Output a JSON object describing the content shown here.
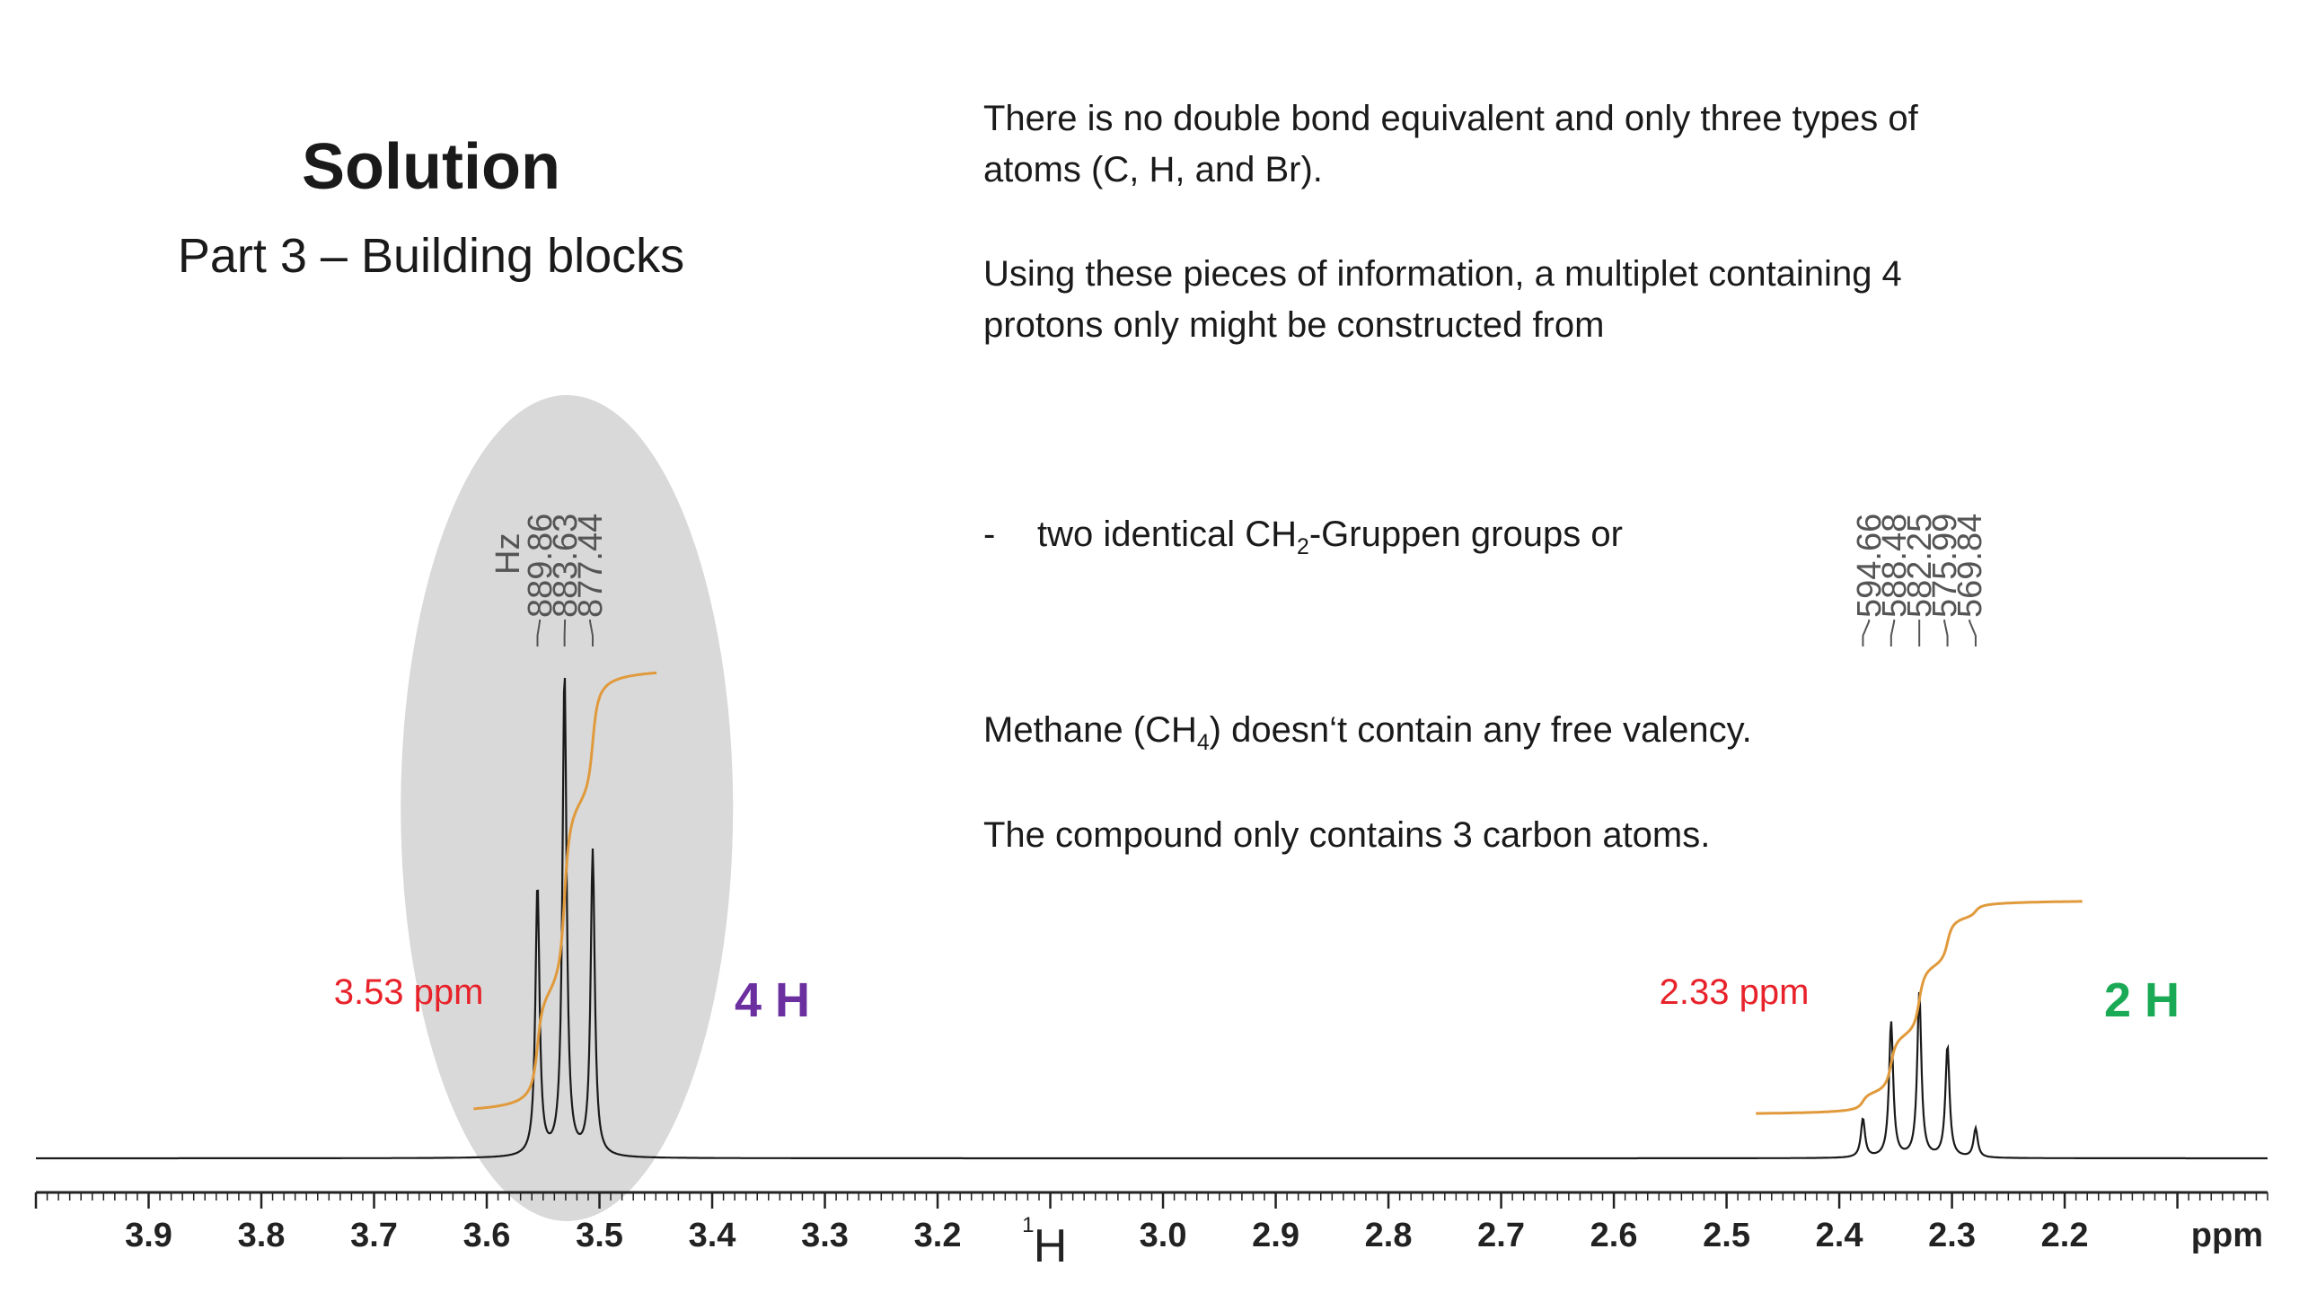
{
  "slide": {
    "title": "Solution",
    "subtitle": "Part 3 – Building blocks",
    "paragraph1": "There is no double bond equivalent and only three types of atoms (C, H, and Br).",
    "paragraph2": "Using these pieces of information, a multiplet containing 4 protons only might be constructed from",
    "bullet_dash": "-",
    "bullet_pre": "two identical CH",
    "bullet_sub": "2",
    "bullet_post": "-Gruppen groups or",
    "paragraph3_pre": "Methane (CH",
    "paragraph3_sub": "4",
    "paragraph3_post": ") doesn‘t contain any free valency.",
    "paragraph4": "The compound only contains 3 carbon atoms."
  },
  "colors": {
    "spectrum": "#1a1a1a",
    "integral": "#e09a3c",
    "highlight": "#d9d9d9",
    "shift_label": "#e8222a",
    "count_4h": "#6b2fa0",
    "count_2h": "#1aaa55",
    "peak_label": "#555555"
  },
  "chart_data": {
    "type": "line",
    "nucleus_superscript": "1",
    "nucleus_symbol": "H",
    "xlabel": "ppm",
    "xlim": [
      4.0,
      2.02
    ],
    "x_ticks": [
      3.9,
      3.8,
      3.7,
      3.6,
      3.5,
      3.4,
      3.3,
      3.2,
      3.0,
      2.9,
      2.8,
      2.7,
      2.6,
      2.5,
      2.4,
      2.3,
      2.2
    ],
    "multiplets": [
      {
        "shift_label": "3.53 ppm",
        "count_label": "4 H",
        "highlighted": true,
        "unit_label": "Hz",
        "peaks": [
          {
            "ppm": 3.555,
            "hz_label": "889.86",
            "rel_height": 0.56
          },
          {
            "ppm": 3.531,
            "hz_label": "883.63",
            "rel_height": 1.0
          },
          {
            "ppm": 3.506,
            "hz_label": "877.44",
            "rel_height": 0.63
          }
        ]
      },
      {
        "shift_label": "2.33 ppm",
        "count_label": "2 H",
        "highlighted": false,
        "unit_label": "",
        "peaks": [
          {
            "ppm": 2.379,
            "hz_label": "594.66",
            "rel_height": 0.08
          },
          {
            "ppm": 2.354,
            "hz_label": "588.48",
            "rel_height": 0.28
          },
          {
            "ppm": 2.329,
            "hz_label": "582.25",
            "rel_height": 0.34
          },
          {
            "ppm": 2.304,
            "hz_label": "575.99",
            "rel_height": 0.23
          },
          {
            "ppm": 2.279,
            "hz_label": "569.84",
            "rel_height": 0.06
          }
        ]
      }
    ],
    "grid": false,
    "legend": "none"
  }
}
